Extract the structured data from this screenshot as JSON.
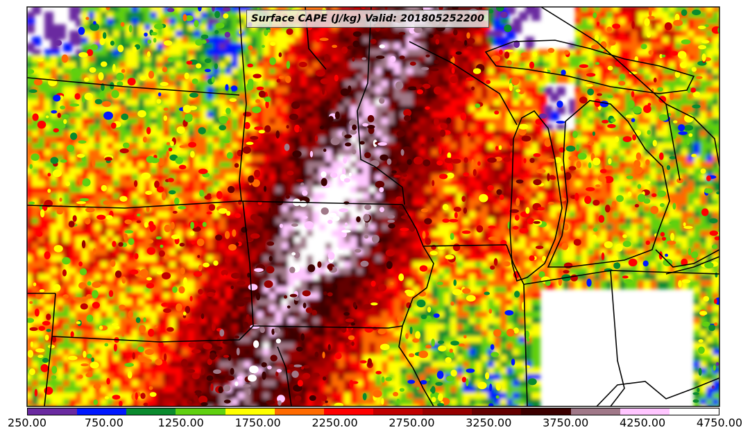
{
  "title": "Surface CAPE (J/kg) Valid: 201805252200",
  "colorbar": {
    "colors": [
      "#6a2aa0",
      "#0018ff",
      "#0a8a2e",
      "#60d010",
      "#ffff00",
      "#ff6a00",
      "#ff0000",
      "#c00000",
      "#960000",
      "#640000",
      "#3c0000",
      "#a07888",
      "#ffc6ff",
      "#ffffff"
    ],
    "tick_labels": [
      "250.00",
      "750.00",
      "1250.00",
      "1750.00",
      "2250.00",
      "2750.00",
      "3250.00",
      "3750.00",
      "4250.00",
      "4750.00"
    ]
  }
}
